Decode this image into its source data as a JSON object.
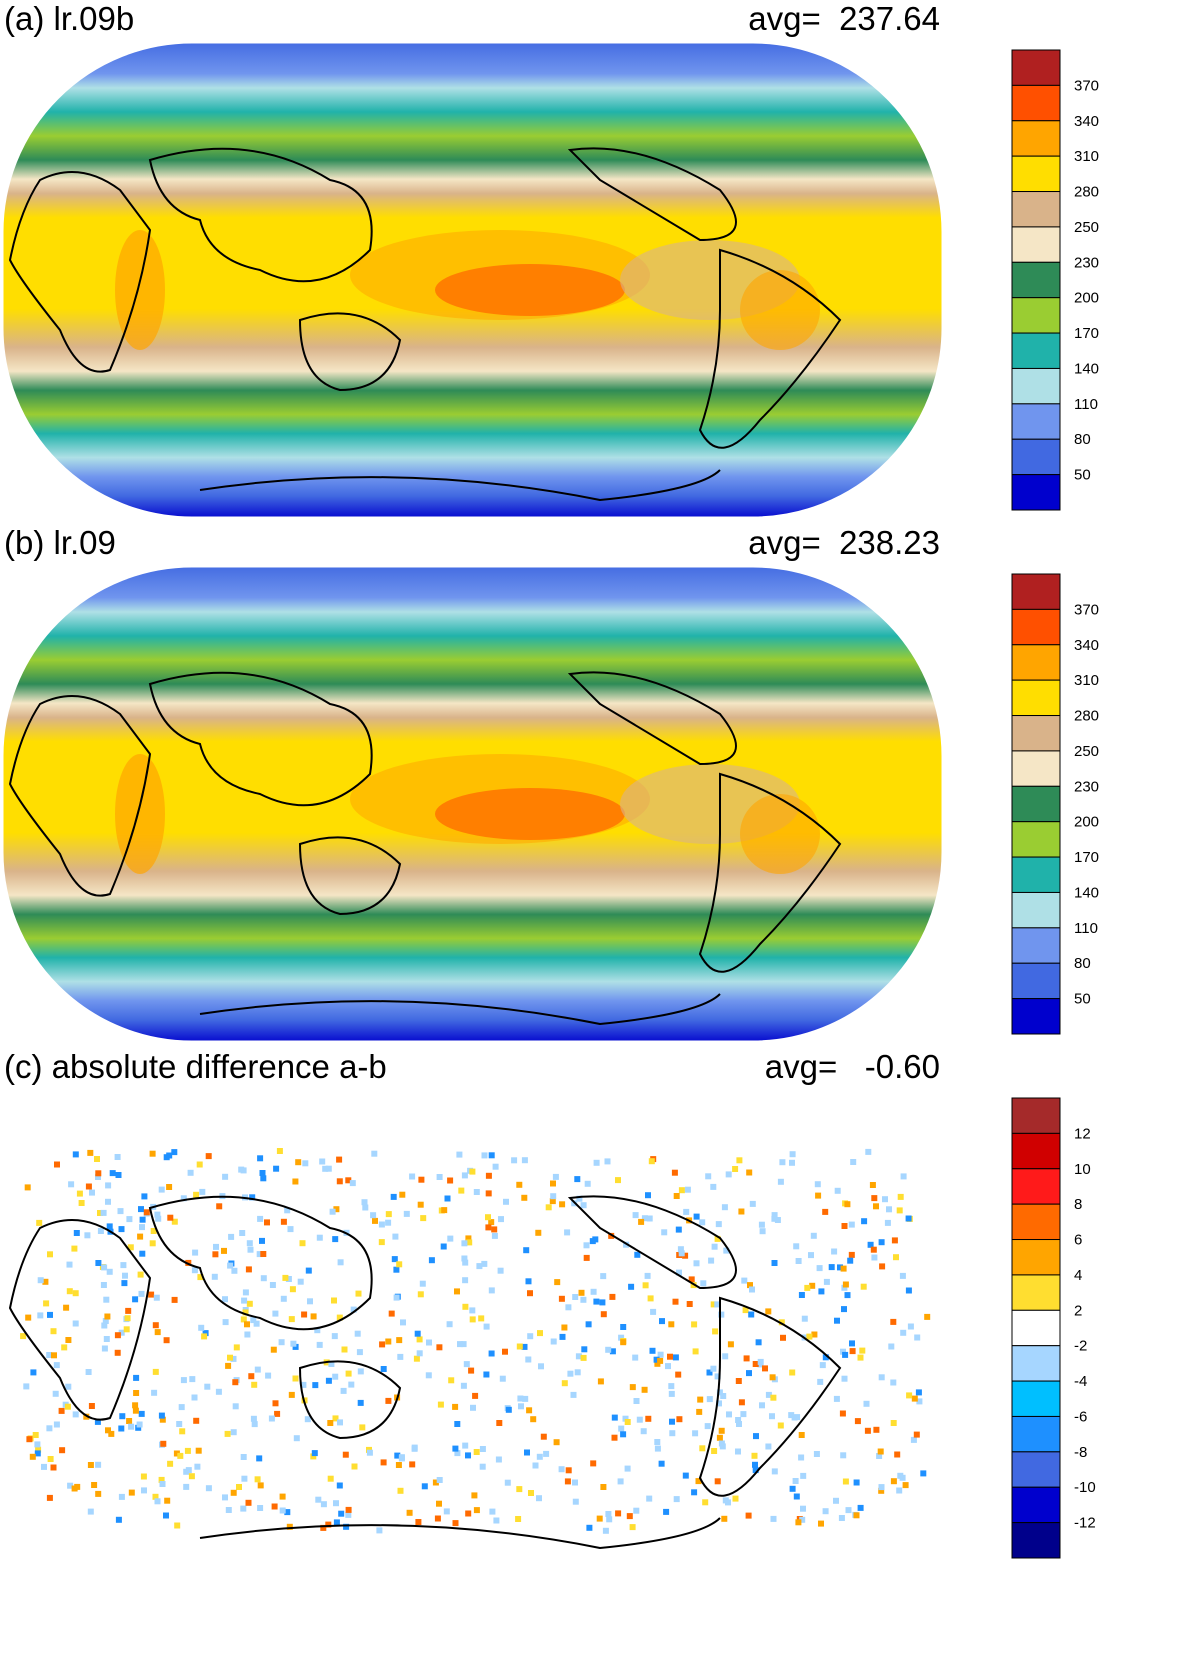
{
  "panels": [
    {
      "title": "(a) lr.09b",
      "avg_label": "avg=",
      "avg_value": "237.64",
      "colorbar": {
        "labels": [
          "370",
          "340",
          "310",
          "280",
          "250",
          "230",
          "200",
          "170",
          "140",
          "110",
          "80",
          "50"
        ],
        "colors": [
          "#b02020",
          "#ff5000",
          "#ffa500",
          "#ffde00",
          "#d9b38a",
          "#f5e6c6",
          "#2e8b57",
          "#9acd32",
          "#20b2aa",
          "#afe0e6",
          "#7095ee",
          "#4169e1",
          "#0000cd"
        ]
      }
    },
    {
      "title": "(b) lr.09",
      "avg_label": "avg=",
      "avg_value": "238.23",
      "colorbar": {
        "labels": [
          "370",
          "340",
          "310",
          "280",
          "250",
          "230",
          "200",
          "170",
          "140",
          "110",
          "80",
          "50"
        ],
        "colors": [
          "#b02020",
          "#ff5000",
          "#ffa500",
          "#ffde00",
          "#d9b38a",
          "#f5e6c6",
          "#2e8b57",
          "#9acd32",
          "#20b2aa",
          "#afe0e6",
          "#7095ee",
          "#4169e1",
          "#0000cd"
        ]
      }
    },
    {
      "title": "(c) absolute difference a-b",
      "avg_label": "avg=",
      "avg_value": "-0.60",
      "colorbar": {
        "labels": [
          "12",
          "10",
          "8",
          "6",
          "4",
          "2",
          "-2",
          "-4",
          "-6",
          "-8",
          "-10",
          "-12"
        ],
        "colors": [
          "#a52a2a",
          "#d00000",
          "#ff1a1a",
          "#ff6a00",
          "#ffa500",
          "#ffde30",
          "#ffffff",
          "#a6d6ff",
          "#00bfff",
          "#1e90ff",
          "#4169e1",
          "#0000cd",
          "#00008b"
        ]
      }
    }
  ],
  "chart_data": [
    {
      "type": "heatmap",
      "title": "(a) lr.09b",
      "annotation": "avg= 237.64",
      "projection": "Robinson",
      "colorbar_levels": [
        50,
        80,
        110,
        140,
        170,
        200,
        230,
        250,
        280,
        310,
        340,
        370
      ]
    },
    {
      "type": "heatmap",
      "title": "(b) lr.09",
      "annotation": "avg= 238.23",
      "projection": "Robinson",
      "colorbar_levels": [
        50,
        80,
        110,
        140,
        170,
        200,
        230,
        250,
        280,
        310,
        340,
        370
      ]
    },
    {
      "type": "heatmap",
      "title": "(c) absolute difference a-b",
      "annotation": "avg= -0.60",
      "projection": "Robinson",
      "colorbar_levels": [
        -12,
        -10,
        -8,
        -6,
        -4,
        -2,
        2,
        4,
        6,
        8,
        10,
        12
      ]
    }
  ]
}
